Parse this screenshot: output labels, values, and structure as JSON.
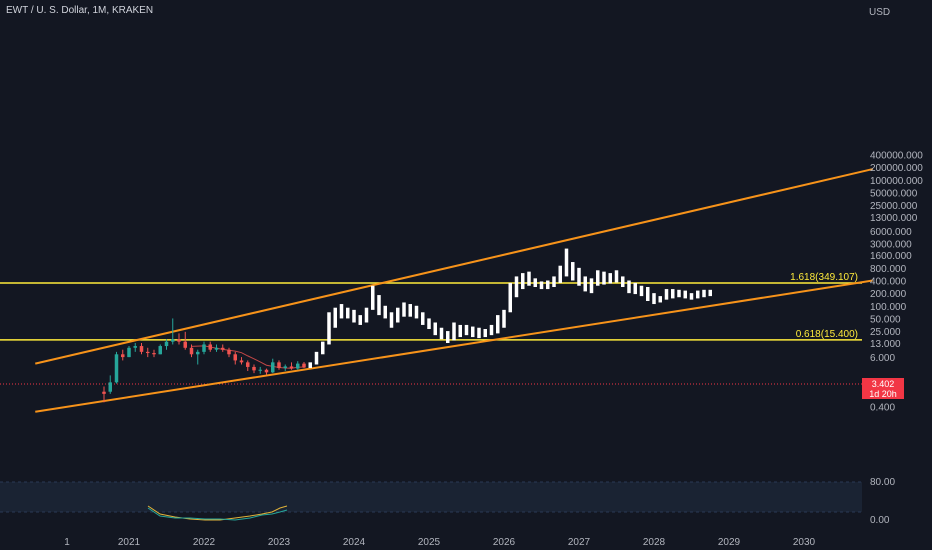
{
  "header": {
    "symbol": "EWT / U. S. Dollar, 1M, KRAKEN"
  },
  "currency": "USD",
  "last_price": {
    "value": "3.402",
    "countdown": "1d 20h",
    "color": "#f23645"
  },
  "colors": {
    "background": "#131722",
    "channel": "#f7931a",
    "fib_level": "#ffeb3b",
    "up": "#26a69a",
    "down": "#ef5350",
    "projection": "#ffffff",
    "rsi_band": "#1e2a3a",
    "price_line": "#f23645"
  },
  "chart_data": {
    "type": "candlestick",
    "yscale": "log",
    "y_ticks": [
      "400000.000",
      "200000.000",
      "100000.000",
      "50000.000",
      "25000.000",
      "13000.000",
      "6000.000",
      "3000.000",
      "1600.000",
      "800.000",
      "400.000",
      "200.000",
      "100.000",
      "50.000",
      "25.000",
      "13.000",
      "6.000",
      "1.600",
      "0.800",
      "0.400"
    ],
    "x_ticks": [
      "1",
      "2021",
      "2022",
      "2023",
      "2024",
      "2025",
      "2026",
      "2027",
      "2028",
      "2029",
      "2030"
    ],
    "fib_levels": [
      {
        "label": "1.618(349.107)",
        "value": 349.107
      },
      {
        "label": "0.618(15.400)",
        "value": 15.4
      }
    ],
    "channel": {
      "upper": [
        {
          "date": "2019-10",
          "value": 4.2
        },
        {
          "date": "2030-12",
          "value": 180000
        }
      ],
      "lower": [
        {
          "date": "2019-10",
          "value": 0.3
        },
        {
          "date": "2030-12",
          "value": 400
        }
      ]
    },
    "historical": [
      {
        "date": "2020-09",
        "o": 0.9,
        "h": 1.2,
        "l": 0.5,
        "c": 0.8
      },
      {
        "date": "2020-10",
        "o": 0.9,
        "h": 2.2,
        "l": 0.8,
        "c": 1.5
      },
      {
        "date": "2020-11",
        "o": 1.5,
        "h": 8.0,
        "l": 1.4,
        "c": 7.0
      },
      {
        "date": "2020-12",
        "o": 7.0,
        "h": 9.0,
        "l": 5.0,
        "c": 6.0
      },
      {
        "date": "2021-01",
        "o": 6.0,
        "h": 11.0,
        "l": 6.0,
        "c": 10.0
      },
      {
        "date": "2021-02",
        "o": 10.0,
        "h": 13.0,
        "l": 8.0,
        "c": 11.0
      },
      {
        "date": "2021-03",
        "o": 11.0,
        "h": 13.0,
        "l": 7.0,
        "c": 8.0
      },
      {
        "date": "2021-04",
        "o": 8.0,
        "h": 10.0,
        "l": 6.0,
        "c": 7.5
      },
      {
        "date": "2021-05",
        "o": 7.5,
        "h": 9.0,
        "l": 6.0,
        "c": 7.0
      },
      {
        "date": "2021-06",
        "o": 7.0,
        "h": 12.0,
        "l": 7.0,
        "c": 11.0
      },
      {
        "date": "2021-07",
        "o": 11.0,
        "h": 16.0,
        "l": 9.0,
        "c": 14.0
      },
      {
        "date": "2021-08",
        "o": 14.0,
        "h": 50.0,
        "l": 12.0,
        "c": 16.0
      },
      {
        "date": "2021-09",
        "o": 16.0,
        "h": 22.0,
        "l": 12.0,
        "c": 14.0
      },
      {
        "date": "2021-10",
        "o": 14.0,
        "h": 24.0,
        "l": 9.0,
        "c": 10.0
      },
      {
        "date": "2021-11",
        "o": 10.0,
        "h": 12.0,
        "l": 6.0,
        "c": 7.0
      },
      {
        "date": "2021-12",
        "o": 7.0,
        "h": 9.0,
        "l": 4.0,
        "c": 8.0
      },
      {
        "date": "2022-01",
        "o": 8.0,
        "h": 14.0,
        "l": 7.0,
        "c": 12.0
      },
      {
        "date": "2022-02",
        "o": 12.0,
        "h": 14.0,
        "l": 8.0,
        "c": 9.0
      },
      {
        "date": "2022-03",
        "o": 9.0,
        "h": 12.0,
        "l": 8.0,
        "c": 10.0
      },
      {
        "date": "2022-04",
        "o": 10.0,
        "h": 12.0,
        "l": 8.0,
        "c": 9.0
      },
      {
        "date": "2022-05",
        "o": 9.0,
        "h": 10.0,
        "l": 6.0,
        "c": 7.0
      },
      {
        "date": "2022-06",
        "o": 7.0,
        "h": 8.0,
        "l": 4.0,
        "c": 5.0
      },
      {
        "date": "2022-07",
        "o": 5.0,
        "h": 6.0,
        "l": 4.0,
        "c": 4.5
      },
      {
        "date": "2022-08",
        "o": 4.5,
        "h": 5.0,
        "l": 2.8,
        "c": 3.5
      },
      {
        "date": "2022-09",
        "o": 3.5,
        "h": 4.0,
        "l": 2.5,
        "c": 2.9
      },
      {
        "date": "2022-10",
        "o": 2.9,
        "h": 3.5,
        "l": 2.4,
        "c": 3.0
      },
      {
        "date": "2022-11",
        "o": 3.0,
        "h": 3.2,
        "l": 2.3,
        "c": 2.6
      },
      {
        "date": "2022-12",
        "o": 2.6,
        "h": 5.5,
        "l": 2.5,
        "c": 4.5
      },
      {
        "date": "2023-01",
        "o": 4.5,
        "h": 5.0,
        "l": 3.0,
        "c": 3.3
      },
      {
        "date": "2023-02",
        "o": 3.3,
        "h": 4.0,
        "l": 2.8,
        "c": 3.6
      },
      {
        "date": "2023-03",
        "o": 3.6,
        "h": 4.5,
        "l": 3.0,
        "c": 3.2
      },
      {
        "date": "2023-04",
        "o": 3.2,
        "h": 4.8,
        "l": 3.0,
        "c": 4.2
      },
      {
        "date": "2023-05",
        "o": 4.2,
        "h": 4.6,
        "l": 3.3,
        "c": 3.4
      }
    ],
    "projection": [
      {
        "date": "2023-06",
        "h": 4.5,
        "l": 3.3
      },
      {
        "date": "2023-07",
        "h": 8.0,
        "l": 4.0
      },
      {
        "date": "2023-08",
        "h": 14.0,
        "l": 7.0
      },
      {
        "date": "2023-09",
        "h": 70.0,
        "l": 12.0
      },
      {
        "date": "2023-10",
        "h": 90.0,
        "l": 30.0
      },
      {
        "date": "2023-11",
        "h": 110.0,
        "l": 50.0
      },
      {
        "date": "2023-12",
        "h": 90.0,
        "l": 50.0
      },
      {
        "date": "2024-01",
        "h": 80.0,
        "l": 40.0
      },
      {
        "date": "2024-02",
        "h": 60.0,
        "l": 35.0
      },
      {
        "date": "2024-03",
        "h": 90.0,
        "l": 40.0
      },
      {
        "date": "2024-04",
        "h": 300.0,
        "l": 80.0
      },
      {
        "date": "2024-05",
        "h": 180.0,
        "l": 60.0
      },
      {
        "date": "2024-06",
        "h": 100.0,
        "l": 50.0
      },
      {
        "date": "2024-07",
        "h": 70.0,
        "l": 30.0
      },
      {
        "date": "2024-08",
        "h": 90.0,
        "l": 40.0
      },
      {
        "date": "2024-09",
        "h": 120.0,
        "l": 55.0
      },
      {
        "date": "2024-10",
        "h": 110.0,
        "l": 55.0
      },
      {
        "date": "2024-11",
        "h": 100.0,
        "l": 50.0
      },
      {
        "date": "2024-12",
        "h": 70.0,
        "l": 35.0
      },
      {
        "date": "2025-01",
        "h": 50.0,
        "l": 28.0
      },
      {
        "date": "2025-02",
        "h": 40.0,
        "l": 20.0
      },
      {
        "date": "2025-03",
        "h": 30.0,
        "l": 16.0
      },
      {
        "date": "2025-04",
        "h": 25.0,
        "l": 13.0
      },
      {
        "date": "2025-05",
        "h": 40.0,
        "l": 15.0
      },
      {
        "date": "2025-06",
        "h": 35.0,
        "l": 18.0
      },
      {
        "date": "2025-07",
        "h": 35.0,
        "l": 20.0
      },
      {
        "date": "2025-08",
        "h": 32.0,
        "l": 18.0
      },
      {
        "date": "2025-09",
        "h": 30.0,
        "l": 17.0
      },
      {
        "date": "2025-10",
        "h": 28.0,
        "l": 18.0
      },
      {
        "date": "2025-11",
        "h": 35.0,
        "l": 20.0
      },
      {
        "date": "2025-12",
        "h": 60.0,
        "l": 22.0
      },
      {
        "date": "2026-01",
        "h": 80.0,
        "l": 30.0
      },
      {
        "date": "2026-02",
        "h": 350.0,
        "l": 70.0
      },
      {
        "date": "2026-03",
        "h": 500.0,
        "l": 160.0
      },
      {
        "date": "2026-04",
        "h": 600.0,
        "l": 250.0
      },
      {
        "date": "2026-05",
        "h": 650.0,
        "l": 300.0
      },
      {
        "date": "2026-06",
        "h": 450.0,
        "l": 280.0
      },
      {
        "date": "2026-07",
        "h": 380.0,
        "l": 250.0
      },
      {
        "date": "2026-08",
        "h": 400.0,
        "l": 250.0
      },
      {
        "date": "2026-09",
        "h": 500.0,
        "l": 280.0
      },
      {
        "date": "2026-10",
        "h": 900.0,
        "l": 350.0
      },
      {
        "date": "2026-11",
        "h": 2300.0,
        "l": 500.0
      },
      {
        "date": "2026-12",
        "h": 1100.0,
        "l": 400.0
      },
      {
        "date": "2027-01",
        "h": 800.0,
        "l": 300.0
      },
      {
        "date": "2027-02",
        "h": 500.0,
        "l": 220.0
      },
      {
        "date": "2027-03",
        "h": 450.0,
        "l": 200.0
      },
      {
        "date": "2027-04",
        "h": 700.0,
        "l": 300.0
      },
      {
        "date": "2027-05",
        "h": 650.0,
        "l": 320.0
      },
      {
        "date": "2027-06",
        "h": 600.0,
        "l": 340.0
      },
      {
        "date": "2027-07",
        "h": 700.0,
        "l": 360.0
      },
      {
        "date": "2027-08",
        "h": 500.0,
        "l": 280.0
      },
      {
        "date": "2027-09",
        "h": 400.0,
        "l": 200.0
      },
      {
        "date": "2027-10",
        "h": 350.0,
        "l": 190.0
      },
      {
        "date": "2027-11",
        "h": 300.0,
        "l": 170.0
      },
      {
        "date": "2027-12",
        "h": 280.0,
        "l": 130.0
      },
      {
        "date": "2028-01",
        "h": 200.0,
        "l": 110.0
      },
      {
        "date": "2028-02",
        "h": 170.0,
        "l": 120.0
      },
      {
        "date": "2028-03",
        "h": 250.0,
        "l": 140.0
      },
      {
        "date": "2028-04",
        "h": 250.0,
        "l": 150.0
      },
      {
        "date": "2028-05",
        "h": 240.0,
        "l": 160.0
      },
      {
        "date": "2028-06",
        "h": 230.0,
        "l": 150.0
      },
      {
        "date": "2028-07",
        "h": 200.0,
        "l": 140.0
      },
      {
        "date": "2028-08",
        "h": 230.0,
        "l": 150.0
      },
      {
        "date": "2028-09",
        "h": 240.0,
        "l": 160.0
      },
      {
        "date": "2028-10",
        "h": 240.0,
        "l": 170.0
      }
    ],
    "rsi_panel": {
      "ticks": [
        "80.00",
        "0.00"
      ],
      "band": [
        20,
        80
      ]
    }
  }
}
